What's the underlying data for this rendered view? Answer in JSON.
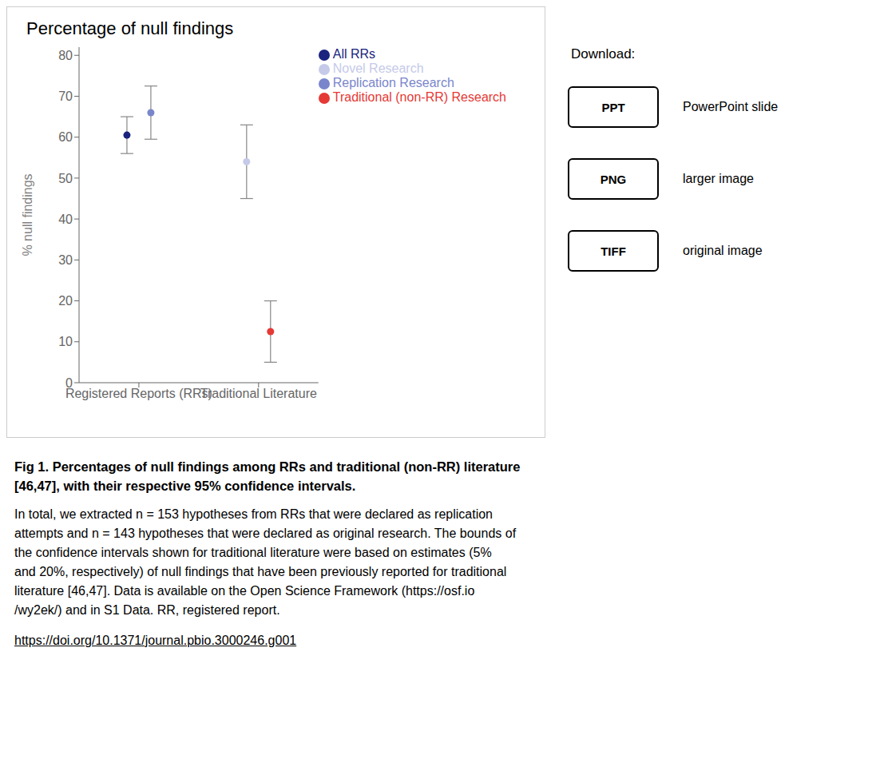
{
  "chart_data": {
    "type": "scatter",
    "title": "Percentage of null findings",
    "ylabel": "% null findings",
    "categories": [
      "Registered Reports (RRs)",
      "Traditional Literature"
    ],
    "series": [
      {
        "name": "All RRs",
        "color": "#1a237e",
        "values": [
          60.5,
          null
        ],
        "error_low": [
          4.5,
          null
        ],
        "error_high": [
          4.5,
          null
        ]
      },
      {
        "name": "Replication Research",
        "color": "#7986cb",
        "values": [
          66.0,
          null
        ],
        "error_low": [
          6.5,
          null
        ],
        "error_high": [
          6.5,
          null
        ]
      },
      {
        "name": "Novel Research",
        "color": "#c5cae9",
        "values": [
          null,
          54.0
        ],
        "error_low": [
          null,
          9.0
        ],
        "error_high": [
          null,
          9.0
        ]
      },
      {
        "name": "Traditional (non-RR) Research",
        "color": "#e53935",
        "values": [
          null,
          12.5
        ],
        "error_low": [
          null,
          7.5
        ],
        "error_high": [
          null,
          7.5
        ]
      }
    ],
    "ylim": [
      0,
      82
    ],
    "yticks": [
      0,
      10,
      20,
      30,
      40,
      50,
      60,
      70,
      80
    ],
    "legend": "upper right",
    "marker": "circle",
    "annotations": [
      "Download:",
      "PPT",
      "PowerPoint slide",
      "PNG",
      "larger image",
      "TIFF",
      "original image",
      "Fig 1. Percentages of null findings among RRs and traditional (non-RR) literature",
      "[46,47], with their respective 95% confidence intervals.",
      "In total, we extracted n = 153 hypotheses from RRs that were declared as replication",
      "attempts and n = 143 hypotheses that were declared as original research. The bounds of",
      "the confidence intervals shown for traditional literature were based on estimates (5%",
      "and 20%, respectively) of null findings that have been previously reported for traditional",
      "literature [46,47]. Data is available on the Open Science Framework (https://osf.io",
      "/wy2ek/) and in S1 Data. RR, registered report.",
      "https://doi.org/10.1371/journal.pbio.3000246.g001"
    ]
  }
}
